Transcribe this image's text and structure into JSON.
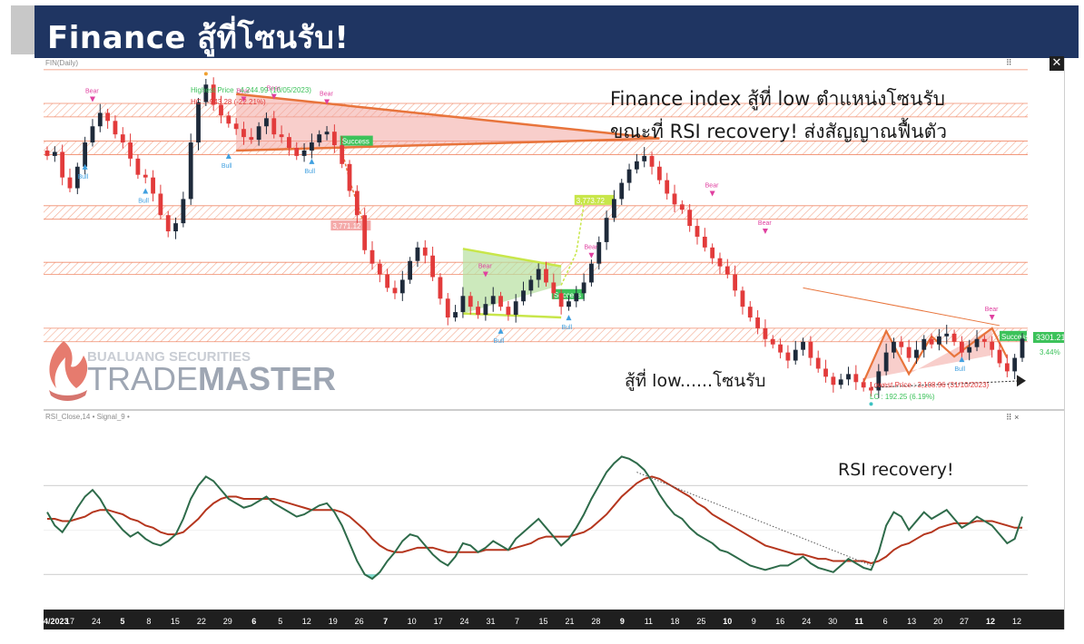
{
  "header": {
    "title": "Finance สู้ที่โซนรับ!"
  },
  "price_panel": {
    "label": "FIN(Daily)",
    "last_price": "3301.21",
    "last_change": "3.44%",
    "close_icon": "close-icon"
  },
  "rsi_panel": {
    "label": "RSI_Close,14 • Signal_9 •"
  },
  "annotations": {
    "main_line1": "Finance index สู้ที่ low ตำแหน่งโซนรับ",
    "main_line2": "ขณะที่ RSI recovery! ส่งสัญญาณฟื้นตัว",
    "low_zone": "สู้ที่ low......โซนรับ",
    "rsi_recovery": "RSI recovery!",
    "highest_price": "Highest Price : 4,244.99 (10/05/2023)",
    "hc": "HC : -943.28 (-22.21%)",
    "lowest_price": "Lowest Price : 3,108.96 (31/10/2023)",
    "lc": "LC : 192.25 (6.19%)",
    "success": "Success",
    "bear": "Bear",
    "bull": "Bull",
    "bull_target": "3,773.72",
    "bear_target": "3,771.12"
  },
  "watermark": {
    "company": "BUALUANG SECURITIES",
    "product_trade": "TRADE",
    "product_master": "MASTER"
  },
  "x_axis": {
    "labels": [
      {
        "text": "4/2023",
        "bold": true
      },
      {
        "text": "17"
      },
      {
        "text": "24"
      },
      {
        "text": "5",
        "bold": true
      },
      {
        "text": "8"
      },
      {
        "text": "15"
      },
      {
        "text": "22"
      },
      {
        "text": "29"
      },
      {
        "text": "6",
        "bold": true
      },
      {
        "text": "5"
      },
      {
        "text": "12"
      },
      {
        "text": "19"
      },
      {
        "text": "26"
      },
      {
        "text": "7",
        "bold": true
      },
      {
        "text": "10"
      },
      {
        "text": "17"
      },
      {
        "text": "24"
      },
      {
        "text": "31"
      },
      {
        "text": "7"
      },
      {
        "text": "15"
      },
      {
        "text": "21"
      },
      {
        "text": "28"
      },
      {
        "text": "9",
        "bold": true
      },
      {
        "text": "11"
      },
      {
        "text": "18"
      },
      {
        "text": "25"
      },
      {
        "text": "10",
        "bold": true
      },
      {
        "text": "9"
      },
      {
        "text": "16"
      },
      {
        "text": "24"
      },
      {
        "text": "30"
      },
      {
        "text": "11",
        "bold": true
      },
      {
        "text": "6"
      },
      {
        "text": "13"
      },
      {
        "text": "20"
      },
      {
        "text": "27"
      },
      {
        "text": "12",
        "bold": true
      },
      {
        "text": "12"
      }
    ]
  },
  "colors": {
    "header_bg": "#1f3562",
    "up_candle": "#1e2a3a",
    "down_candle": "#e23b3b",
    "zone_line": "#f08a6a",
    "rsi_line": "#2e6b4a",
    "signal_line": "#b5361e",
    "triangle": "#e8743b",
    "green_pattern": "#c8e64a",
    "success_bg": "#3cc25a"
  },
  "chart_data": [
    {
      "type": "candlestick",
      "title": "FIN(Daily)",
      "xlabel": "",
      "ylabel": "",
      "close": [
        3980,
        3995,
        3900,
        3860,
        3940,
        4030,
        4090,
        4140,
        4110,
        4060,
        4030,
        3970,
        3910,
        3900,
        3840,
        3760,
        3700,
        3730,
        3820,
        4030,
        4180,
        4244.99,
        4170,
        4130,
        4100,
        4080,
        4050,
        4040,
        4090,
        4120,
        4060,
        4050,
        4010,
        3980,
        4000,
        4030,
        4060,
        4070,
        4020,
        3950,
        3850,
        3760,
        3630,
        3580,
        3540,
        3490,
        3470,
        3520,
        3590,
        3640,
        3610,
        3530,
        3450,
        3380,
        3400,
        3460,
        3420,
        3390,
        3430,
        3460,
        3420,
        3390,
        3440,
        3480,
        3520,
        3560,
        3510,
        3470,
        3420,
        3440,
        3470,
        3510,
        3580,
        3660,
        3750,
        3820,
        3880,
        3930,
        3960,
        3980,
        3940,
        3890,
        3840,
        3800,
        3780,
        3720,
        3680,
        3640,
        3600,
        3570,
        3540,
        3480,
        3420,
        3380,
        3340,
        3300,
        3280,
        3250,
        3220,
        3260,
        3290,
        3230,
        3190,
        3160,
        3130,
        3150,
        3170,
        3140,
        3120,
        3108.96,
        3180,
        3250,
        3290,
        3270,
        3230,
        3260,
        3300,
        3280,
        3310,
        3320,
        3290,
        3250,
        3270,
        3300,
        3290,
        3260,
        3210,
        3180,
        3230,
        3301.21
      ],
      "ylim": [
        3050,
        4330
      ],
      "zones": [
        [
          4125,
          4175
        ],
        [
          3985,
          4035
        ],
        [
          3745,
          3795
        ],
        [
          3540,
          3585
        ],
        [
          3290,
          3340
        ]
      ],
      "highest": {
        "index": 21,
        "value": 4244.99
      },
      "lowest": {
        "index": 109,
        "value": 3108.96
      }
    },
    {
      "type": "line",
      "title": "RSI_Close,14",
      "series": [
        {
          "name": "RSI_Close,14",
          "values": [
            58,
            52,
            49,
            54,
            60,
            65,
            68,
            64,
            58,
            54,
            50,
            47,
            49,
            46,
            44,
            43,
            45,
            48,
            55,
            64,
            70,
            74,
            72,
            68,
            64,
            62,
            60,
            61,
            63,
            65,
            62,
            60,
            58,
            56,
            57,
            59,
            61,
            62,
            58,
            52,
            44,
            36,
            30,
            28,
            31,
            36,
            40,
            45,
            48,
            47,
            43,
            39,
            36,
            34,
            38,
            44,
            43,
            40,
            42,
            45,
            43,
            41,
            46,
            49,
            52,
            55,
            51,
            47,
            43,
            46,
            51,
            57,
            64,
            70,
            76,
            80,
            83,
            82,
            80,
            77,
            72,
            66,
            61,
            57,
            55,
            51,
            48,
            46,
            44,
            41,
            40,
            38,
            36,
            34,
            33,
            32,
            33,
            34,
            34,
            36,
            38,
            35,
            33,
            32,
            31,
            34,
            37,
            35,
            33,
            32,
            40,
            52,
            58,
            56,
            50,
            54,
            58,
            55,
            57,
            59,
            55,
            51,
            53,
            56,
            54,
            52,
            48,
            44,
            46,
            56
          ]
        },
        {
          "name": "Signal_9",
          "values": [
            55,
            55,
            54,
            54,
            55,
            56,
            58,
            59,
            59,
            58,
            57,
            55,
            54,
            52,
            51,
            49,
            48,
            48,
            49,
            52,
            55,
            59,
            62,
            64,
            65,
            65,
            64,
            64,
            64,
            64,
            64,
            63,
            62,
            61,
            60,
            59,
            59,
            59,
            59,
            58,
            56,
            53,
            50,
            46,
            43,
            41,
            40,
            40,
            41,
            42,
            42,
            42,
            41,
            40,
            40,
            40,
            40,
            40,
            41,
            41,
            41,
            41,
            42,
            43,
            44,
            46,
            47,
            47,
            47,
            47,
            48,
            49,
            51,
            54,
            57,
            61,
            65,
            68,
            71,
            73,
            74,
            73,
            71,
            69,
            67,
            65,
            62,
            60,
            57,
            55,
            53,
            51,
            49,
            47,
            45,
            43,
            42,
            41,
            40,
            39,
            39,
            38,
            37,
            37,
            36,
            36,
            36,
            36,
            36,
            35,
            36,
            38,
            41,
            43,
            44,
            46,
            48,
            49,
            51,
            52,
            53,
            53,
            53,
            54,
            54,
            54,
            53,
            52,
            51,
            51
          ]
        }
      ],
      "ylim": [
        15,
        95
      ],
      "levels": [
        70,
        30
      ]
    }
  ]
}
